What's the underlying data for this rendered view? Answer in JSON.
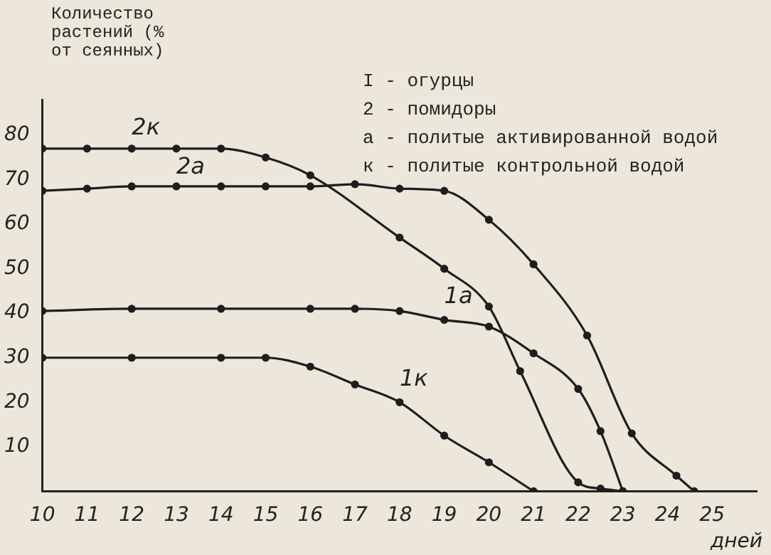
{
  "chart_data": {
    "type": "line",
    "ylabel": "Количество растений (% от сеянных)",
    "xlabel": "дней",
    "annotations": [
      "I - огурцы",
      "2 - помидоры",
      "а - политые активированной водой",
      "к - политые контрольной водой"
    ],
    "series": [
      {
        "name": "2к",
        "color": "#1e1e1e",
        "x": [
          10,
          11,
          12,
          13,
          14,
          15,
          16,
          18,
          19,
          20,
          20.7,
          22,
          22.5,
          23
        ],
        "values": [
          77,
          77,
          77,
          77,
          77,
          75,
          71,
          57,
          50,
          41.5,
          27,
          2,
          0.6,
          0
        ]
      },
      {
        "name": "2а",
        "color": "#1e1e1e",
        "x": [
          10,
          11,
          12,
          13,
          14,
          15,
          16,
          17,
          18,
          19,
          20,
          21,
          22.2,
          23.2,
          24.2,
          24.6
        ],
        "values": [
          67.5,
          68,
          68.5,
          68.5,
          68.5,
          68.5,
          68.5,
          69,
          68,
          67.5,
          61,
          51,
          35,
          13,
          3.5,
          0
        ]
      },
      {
        "name": "1а",
        "color": "#1e1e1e",
        "x": [
          10,
          12,
          14,
          16,
          17,
          18,
          19,
          20,
          21,
          22,
          22.5,
          23
        ],
        "values": [
          40.5,
          41,
          41,
          41,
          41,
          40.5,
          38.5,
          37,
          31,
          23,
          13.5,
          0
        ]
      },
      {
        "name": "1к",
        "color": "#1e1e1e",
        "x": [
          10,
          12,
          14,
          15,
          16,
          17,
          18,
          19,
          20,
          21
        ],
        "values": [
          30,
          30,
          30,
          30,
          28,
          24,
          20,
          12.5,
          6.5,
          0
        ]
      }
    ],
    "xlim": [
      10,
      26
    ],
    "ylim": [
      0,
      88
    ],
    "xticks": [
      10,
      11,
      12,
      13,
      14,
      15,
      16,
      17,
      18,
      19,
      20,
      21,
      22,
      23,
      24,
      25
    ],
    "yticks": [
      10,
      20,
      30,
      40,
      50,
      60,
      70,
      80
    ],
    "marker": "circle",
    "line_style": "solid",
    "grid": false,
    "legend": false
  }
}
